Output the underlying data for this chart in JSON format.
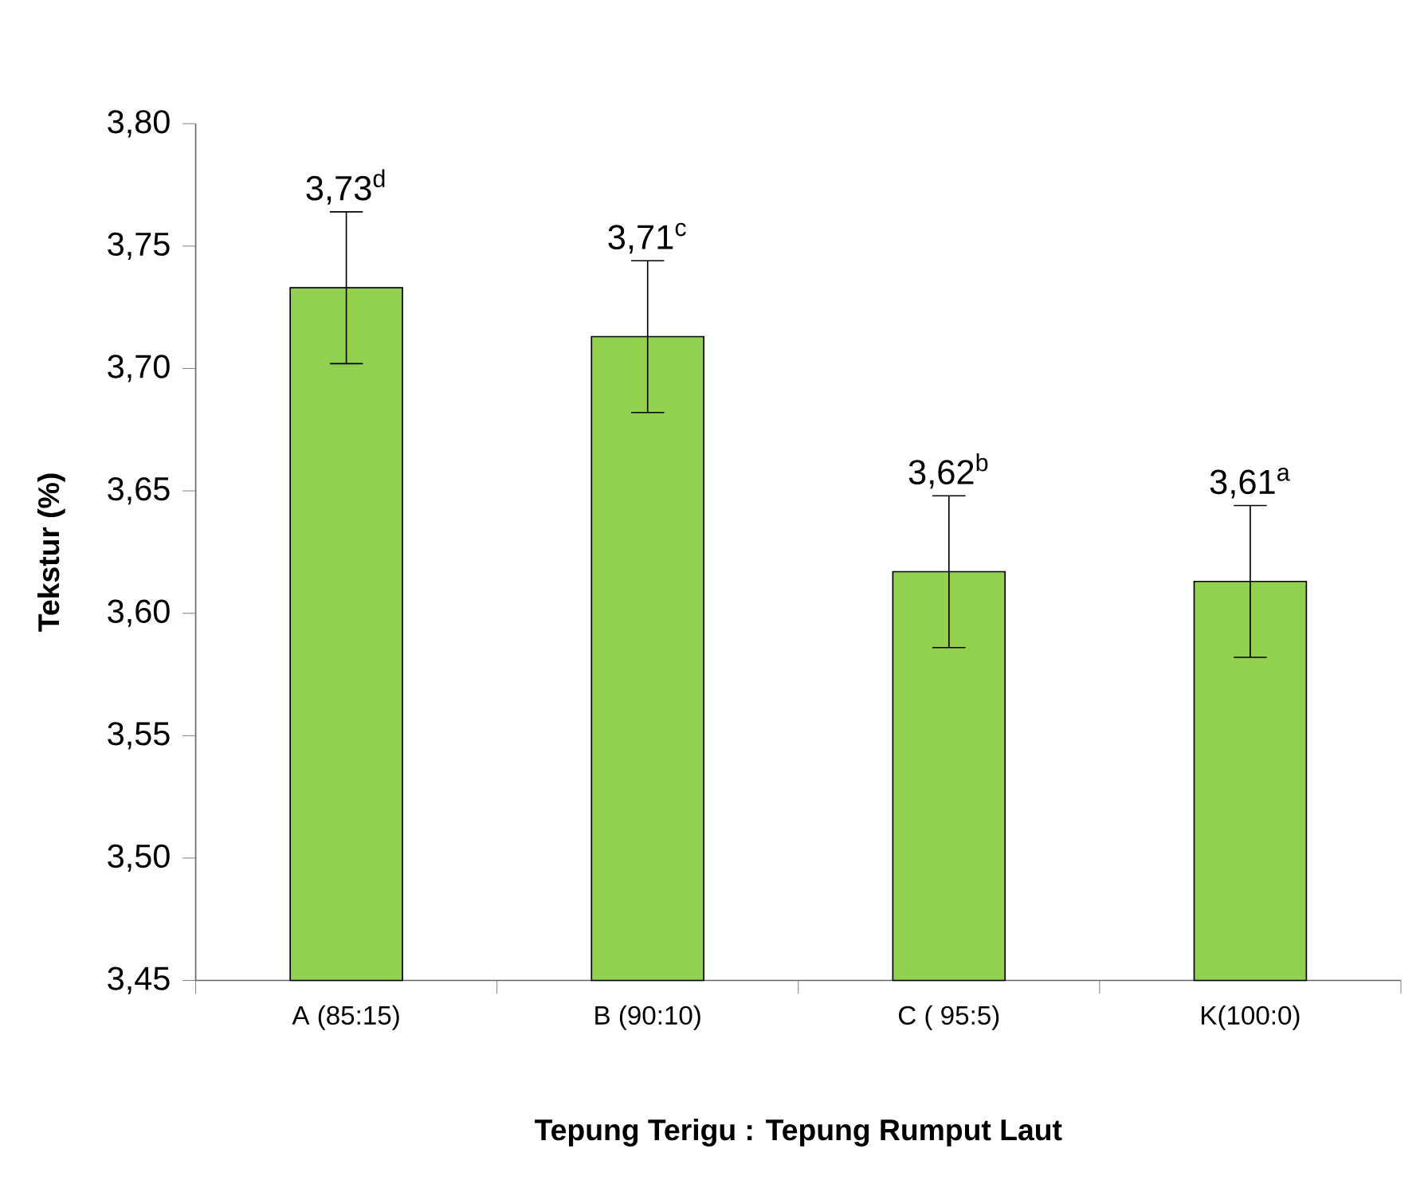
{
  "chart_data": {
    "type": "bar",
    "xlabel": "Tepung Terigu : Tepung Rumput Laut",
    "ylabel": "Tekstur  (%)",
    "categories": [
      "A (85:15)",
      "B (90:10)",
      "C ( 95:5)",
      "K(100:0)"
    ],
    "values": [
      3.733,
      3.713,
      3.617,
      3.613
    ],
    "errors": [
      0.031,
      0.031,
      0.031,
      0.031
    ],
    "value_labels": [
      "3,73$^{d}$",
      "3,71$^{c}$",
      "3,62$^{b}$",
      "3,61$^{a}$"
    ],
    "color": "#92d050",
    "ylim": [
      3.45,
      3.8
    ],
    "yticks": [
      {
        "value": 3.45,
        "label": "3,45"
      },
      {
        "value": 3.5,
        "label": "3,50"
      },
      {
        "value": 3.55,
        "label": "3,55"
      },
      {
        "value": 3.6,
        "label": "3,60"
      },
      {
        "value": 3.65,
        "label": "3,65"
      },
      {
        "value": 3.7,
        "label": "3,70"
      },
      {
        "value": 3.75,
        "label": "3,75"
      },
      {
        "value": 3.8,
        "label": "3,80"
      }
    ]
  }
}
